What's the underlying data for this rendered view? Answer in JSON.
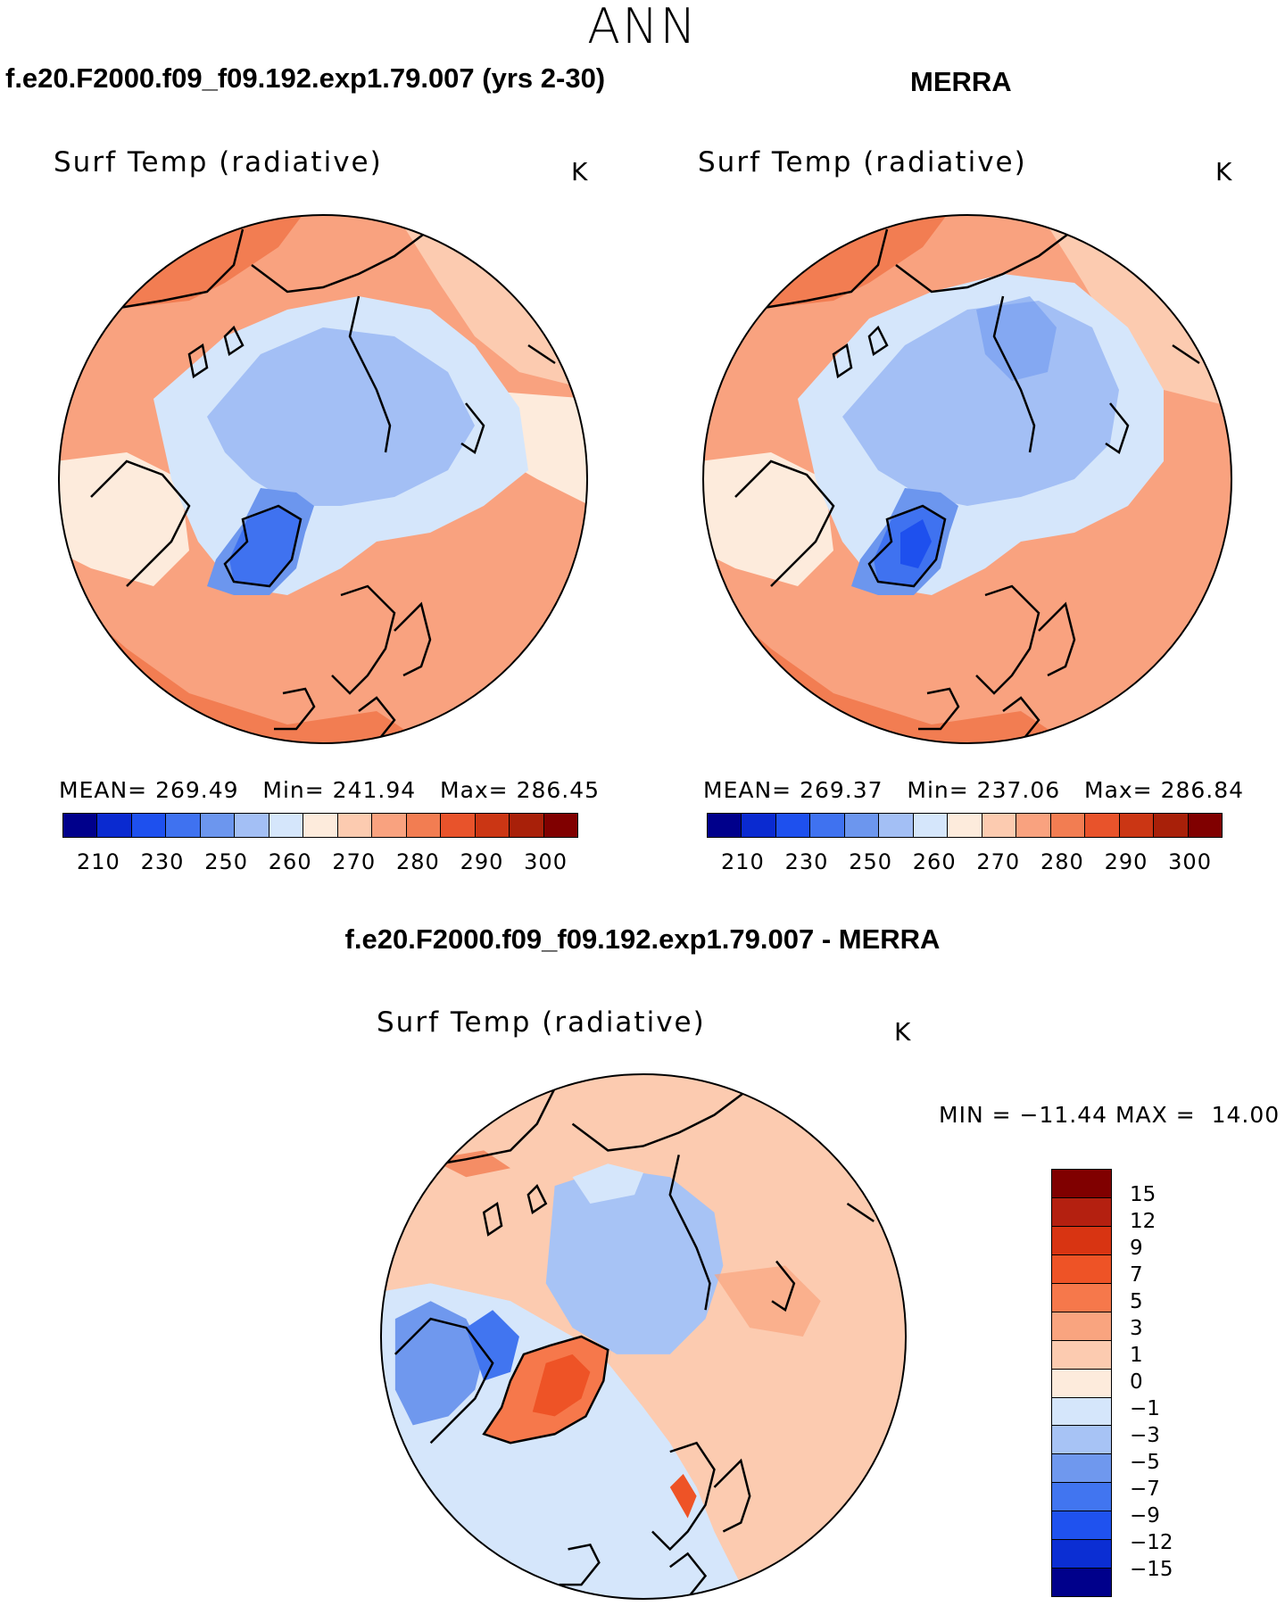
{
  "season": "ANN",
  "panels": [
    {
      "title": "f.e20.F2000.f09_f09.192.exp1.79.007 (yrs 2-30)",
      "variable": "Surf Temp (radiative)",
      "units": "K",
      "stats": {
        "mean_label": "MEAN=",
        "mean": "269.49",
        "min_label": "Min=",
        "min": "241.94",
        "max_label": "Max=",
        "max": "286.45"
      }
    },
    {
      "title": "MERRA",
      "variable": "Surf Temp (radiative)",
      "units": "K",
      "stats": {
        "mean_label": "MEAN=",
        "mean": "269.37",
        "min_label": "Min=",
        "min": "237.06",
        "max_label": "Max=",
        "max": "286.84"
      }
    },
    {
      "title": "f.e20.F2000.f09_f09.192.exp1.79.007 - MERRA",
      "variable": "Surf Temp (radiative)",
      "units": "K",
      "stats": {
        "min_label": "MIN =",
        "min": "−11.44",
        "max_label": "MAX =",
        "max": "14.00"
      }
    }
  ],
  "colorbar_abs": {
    "ticks": [
      "210",
      "230",
      "250",
      "260",
      "270",
      "280",
      "290",
      "300"
    ],
    "colors": [
      "#00008b",
      "#0a2ad0",
      "#1e50ee",
      "#3f72f0",
      "#6c96ee",
      "#a3bff5",
      "#d5e6fb",
      "#fdebdc",
      "#fccbb0",
      "#f9a27f",
      "#f27d52",
      "#e8532b",
      "#cb3614",
      "#a82009",
      "#800000"
    ]
  },
  "colorbar_diff": {
    "ticks": [
      "15",
      "12",
      "9",
      "7",
      "5",
      "3",
      "1",
      "0",
      "−1",
      "−3",
      "−5",
      "−7",
      "−9",
      "−12",
      "−15"
    ],
    "colors": [
      "#800000",
      "#b42010",
      "#d83412",
      "#ee5326",
      "#f6784b",
      "#f9a47f",
      "#fccbb0",
      "#fdebdc",
      "#d5e6fb",
      "#a7c3f5",
      "#6f98ee",
      "#4175f0",
      "#1f52ef",
      "#0b2ed3",
      "#00008b"
    ]
  },
  "chart_data": {
    "type": "heatmap",
    "projection": "north polar stereographic",
    "maps": 3
  }
}
